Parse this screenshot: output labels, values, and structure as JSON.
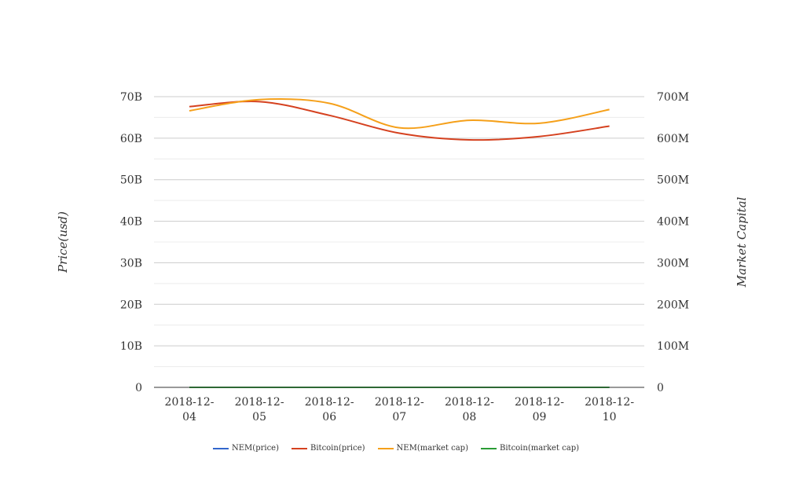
{
  "chart_data": {
    "type": "line",
    "x": [
      "2018-12-04",
      "2018-12-05",
      "2018-12-06",
      "2018-12-07",
      "2018-12-08",
      "2018-12-09",
      "2018-12-10"
    ],
    "x_tick_lines": [
      [
        "2018-12-",
        "04"
      ],
      [
        "2018-12-",
        "05"
      ],
      [
        "2018-12-",
        "06"
      ],
      [
        "2018-12-",
        "07"
      ],
      [
        "2018-12-",
        "08"
      ],
      [
        "2018-12-",
        "09"
      ],
      [
        "2018-12-",
        "10"
      ]
    ],
    "y_left": {
      "label": "Price(usd)",
      "ticks": [
        "0",
        "10B",
        "20B",
        "30B",
        "40B",
        "50B",
        "60B",
        "70B"
      ],
      "range": [
        0,
        70000000000
      ]
    },
    "y_right": {
      "label": "Market Capital",
      "ticks": [
        "0",
        "100M",
        "200M",
        "300M",
        "400M",
        "500M",
        "600M",
        "700M"
      ],
      "range": [
        0,
        700000000
      ]
    },
    "grid": true,
    "legend_position": "bottom",
    "series": [
      {
        "name": "NEM(price)",
        "axis": "left",
        "color": "#3366cc",
        "values": [
          0.06,
          0.06,
          0.06,
          0.05,
          0.05,
          0.05,
          0.05
        ]
      },
      {
        "name": "Bitcoin(price)",
        "axis": "left",
        "color": "#d5411f",
        "values": [
          67600000000,
          68800000000,
          65500000000,
          61200000000,
          59600000000,
          60400000000,
          62900000000
        ]
      },
      {
        "name": "NEM(market cap)",
        "axis": "right",
        "color": "#f5a01a",
        "values": [
          666000000,
          693000000,
          684000000,
          625000000,
          643000000,
          636000000,
          669000000
        ]
      },
      {
        "name": "Bitcoin(market cap)",
        "axis": "right",
        "color": "#2a9c35",
        "values": [
          0,
          0,
          0,
          0,
          0,
          0,
          0
        ]
      }
    ]
  }
}
